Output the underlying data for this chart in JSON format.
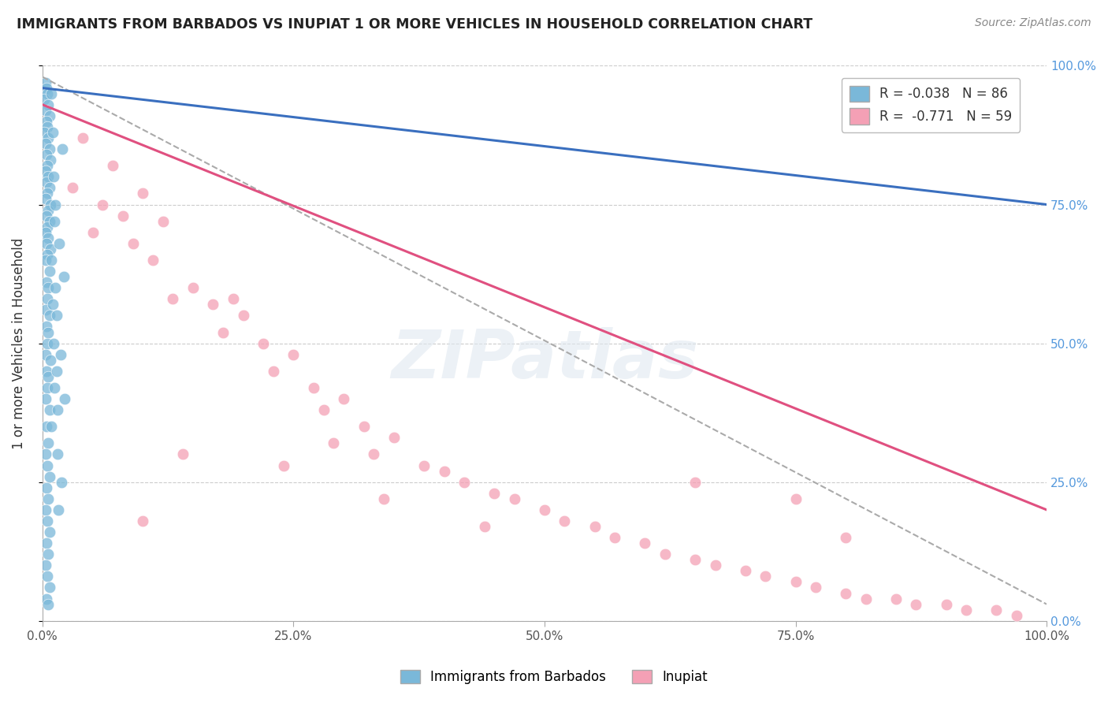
{
  "title": "IMMIGRANTS FROM BARBADOS VS INUPIAT 1 OR MORE VEHICLES IN HOUSEHOLD CORRELATION CHART",
  "source": "Source: ZipAtlas.com",
  "ylabel": "1 or more Vehicles in Household",
  "xmin": 0.0,
  "xmax": 1.0,
  "ymin": 0.0,
  "ymax": 1.0,
  "blue_color": "#7ab8d9",
  "pink_color": "#f4a0b5",
  "blue_line_color": "#3a6fbf",
  "pink_line_color": "#e05080",
  "dashed_line_color": "#aaaaaa",
  "legend_label_blue": "R = -0.038   N = 86",
  "legend_label_pink": "R =  -0.771   N = 59",
  "bottom_label_blue": "Immigrants from Barbados",
  "bottom_label_pink": "Inupiat",
  "watermark": "ZIPatlas",
  "blue_line_x0": 0.0,
  "blue_line_y0": 0.96,
  "blue_line_x1": 1.0,
  "blue_line_y1": 0.75,
  "pink_line_x0": 0.0,
  "pink_line_y0": 0.93,
  "pink_line_x1": 1.0,
  "pink_line_y1": 0.2,
  "dash_line_x0": 0.0,
  "dash_line_y0": 0.98,
  "dash_line_x1": 1.0,
  "dash_line_y1": 0.03,
  "blue_dots": [
    [
      0.003,
      0.97
    ],
    [
      0.004,
      0.96
    ],
    [
      0.005,
      0.95
    ],
    [
      0.002,
      0.94
    ],
    [
      0.006,
      0.93
    ],
    [
      0.003,
      0.92
    ],
    [
      0.007,
      0.91
    ],
    [
      0.004,
      0.9
    ],
    [
      0.005,
      0.89
    ],
    [
      0.002,
      0.88
    ],
    [
      0.006,
      0.87
    ],
    [
      0.003,
      0.86
    ],
    [
      0.007,
      0.85
    ],
    [
      0.004,
      0.84
    ],
    [
      0.008,
      0.83
    ],
    [
      0.005,
      0.82
    ],
    [
      0.003,
      0.81
    ],
    [
      0.006,
      0.8
    ],
    [
      0.004,
      0.79
    ],
    [
      0.007,
      0.78
    ],
    [
      0.005,
      0.77
    ],
    [
      0.003,
      0.76
    ],
    [
      0.008,
      0.75
    ],
    [
      0.006,
      0.74
    ],
    [
      0.004,
      0.73
    ],
    [
      0.007,
      0.72
    ],
    [
      0.005,
      0.71
    ],
    [
      0.003,
      0.7
    ],
    [
      0.006,
      0.69
    ],
    [
      0.004,
      0.68
    ],
    [
      0.008,
      0.67
    ],
    [
      0.005,
      0.66
    ],
    [
      0.003,
      0.65
    ],
    [
      0.007,
      0.63
    ],
    [
      0.004,
      0.61
    ],
    [
      0.006,
      0.6
    ],
    [
      0.005,
      0.58
    ],
    [
      0.003,
      0.56
    ],
    [
      0.007,
      0.55
    ],
    [
      0.004,
      0.53
    ],
    [
      0.006,
      0.52
    ],
    [
      0.005,
      0.5
    ],
    [
      0.003,
      0.48
    ],
    [
      0.008,
      0.47
    ],
    [
      0.004,
      0.45
    ],
    [
      0.006,
      0.44
    ],
    [
      0.005,
      0.42
    ],
    [
      0.003,
      0.4
    ],
    [
      0.007,
      0.38
    ],
    [
      0.004,
      0.35
    ],
    [
      0.006,
      0.32
    ],
    [
      0.003,
      0.3
    ],
    [
      0.005,
      0.28
    ],
    [
      0.007,
      0.26
    ],
    [
      0.004,
      0.24
    ],
    [
      0.006,
      0.22
    ],
    [
      0.003,
      0.2
    ],
    [
      0.005,
      0.18
    ],
    [
      0.007,
      0.16
    ],
    [
      0.004,
      0.14
    ],
    [
      0.006,
      0.12
    ],
    [
      0.003,
      0.1
    ],
    [
      0.005,
      0.08
    ],
    [
      0.007,
      0.06
    ],
    [
      0.004,
      0.04
    ],
    [
      0.006,
      0.03
    ],
    [
      0.009,
      0.95
    ],
    [
      0.01,
      0.88
    ],
    [
      0.011,
      0.8
    ],
    [
      0.012,
      0.72
    ],
    [
      0.009,
      0.65
    ],
    [
      0.01,
      0.57
    ],
    [
      0.011,
      0.5
    ],
    [
      0.012,
      0.42
    ],
    [
      0.009,
      0.35
    ],
    [
      0.013,
      0.6
    ],
    [
      0.014,
      0.45
    ],
    [
      0.015,
      0.3
    ],
    [
      0.013,
      0.75
    ],
    [
      0.014,
      0.55
    ],
    [
      0.015,
      0.38
    ],
    [
      0.016,
      0.2
    ],
    [
      0.017,
      0.68
    ],
    [
      0.018,
      0.48
    ],
    [
      0.019,
      0.25
    ],
    [
      0.02,
      0.85
    ],
    [
      0.021,
      0.62
    ],
    [
      0.022,
      0.4
    ]
  ],
  "pink_dots": [
    [
      0.04,
      0.87
    ],
    [
      0.07,
      0.82
    ],
    [
      0.03,
      0.78
    ],
    [
      0.1,
      0.77
    ],
    [
      0.06,
      0.75
    ],
    [
      0.08,
      0.73
    ],
    [
      0.05,
      0.7
    ],
    [
      0.12,
      0.72
    ],
    [
      0.09,
      0.68
    ],
    [
      0.11,
      0.65
    ],
    [
      0.15,
      0.6
    ],
    [
      0.13,
      0.58
    ],
    [
      0.17,
      0.57
    ],
    [
      0.2,
      0.55
    ],
    [
      0.18,
      0.52
    ],
    [
      0.22,
      0.5
    ],
    [
      0.25,
      0.48
    ],
    [
      0.23,
      0.45
    ],
    [
      0.27,
      0.42
    ],
    [
      0.3,
      0.4
    ],
    [
      0.28,
      0.38
    ],
    [
      0.32,
      0.35
    ],
    [
      0.35,
      0.33
    ],
    [
      0.33,
      0.3
    ],
    [
      0.38,
      0.28
    ],
    [
      0.4,
      0.27
    ],
    [
      0.42,
      0.25
    ],
    [
      0.45,
      0.23
    ],
    [
      0.47,
      0.22
    ],
    [
      0.5,
      0.2
    ],
    [
      0.52,
      0.18
    ],
    [
      0.55,
      0.17
    ],
    [
      0.57,
      0.15
    ],
    [
      0.6,
      0.14
    ],
    [
      0.62,
      0.12
    ],
    [
      0.65,
      0.11
    ],
    [
      0.67,
      0.1
    ],
    [
      0.7,
      0.09
    ],
    [
      0.72,
      0.08
    ],
    [
      0.75,
      0.07
    ],
    [
      0.77,
      0.06
    ],
    [
      0.8,
      0.05
    ],
    [
      0.82,
      0.04
    ],
    [
      0.85,
      0.04
    ],
    [
      0.87,
      0.03
    ],
    [
      0.9,
      0.03
    ],
    [
      0.92,
      0.02
    ],
    [
      0.95,
      0.02
    ],
    [
      0.97,
      0.01
    ],
    [
      0.14,
      0.3
    ],
    [
      0.19,
      0.58
    ],
    [
      0.24,
      0.28
    ],
    [
      0.29,
      0.32
    ],
    [
      0.34,
      0.22
    ],
    [
      0.75,
      0.22
    ],
    [
      0.44,
      0.17
    ],
    [
      0.65,
      0.25
    ],
    [
      0.8,
      0.15
    ],
    [
      0.1,
      0.18
    ]
  ]
}
